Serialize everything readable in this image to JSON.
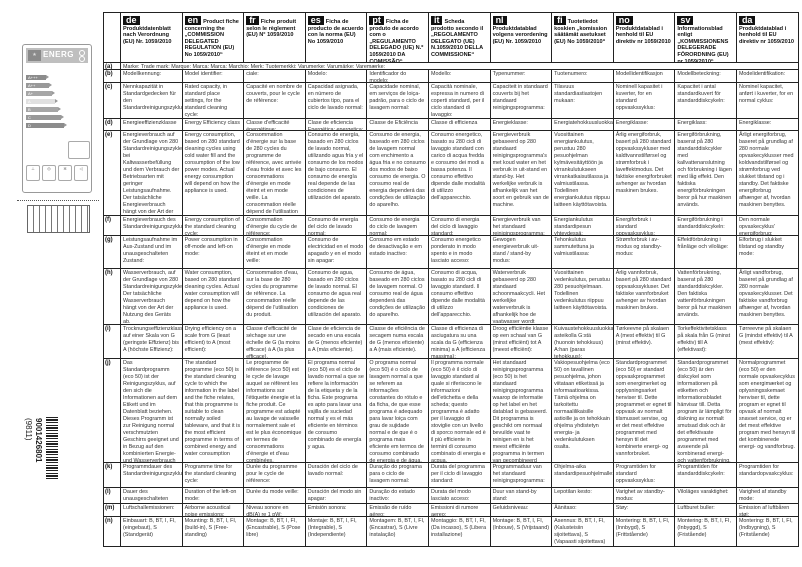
{
  "energy_label": {
    "brand_text": "ENERG",
    "classes": [
      "A+++",
      "A++",
      "A+",
      "A",
      "B",
      "C",
      "D"
    ],
    "icon_names": [
      "water-tap-icon",
      "dishes-icon",
      "drying-icon",
      "speaker-icon"
    ]
  },
  "barcode": {
    "number": "9001426801",
    "code": "(9811)"
  },
  "row_labels": [
    "(a)",
    "(b)",
    "(c)",
    "(d)",
    "(e)",
    "(f)",
    "(g)",
    "(h)",
    "(i)",
    "(j)",
    "(k)",
    "(l)",
    "(m)",
    "(n)"
  ],
  "row_a_text": "Marke: Trade mark: Marque: Marca: Marca: Marchio: Merk: Tuotemerkki: Varumerke: Varumärke: Varemærke:",
  "languages": [
    {
      "code": "de",
      "title": "Produktdatenblatt nach Verordnung (EU) Nr. 1059/2010",
      "b": "Modellkennung:",
      "c": "Nennkapazität in Standardgedecken für den Standardreinigungszyklus:",
      "d": "Energieeffizienzklasse",
      "e": "Energieverbrauch auf der Grundlage von 280 Standardreinigungszyklen bei Kaltwasserbefüllung und dem Verbrauch der Betriebsarten mit geringer Leistungsaufnahme. Der tatsächliche Energieverbrauch hängt von der Art der Nutzung des Geräts ab.",
      "f": "Energieverbrauch des Standardreinigungszyklus:",
      "g": "Leistungsaufnahme im Aus-Zustand und im unausgeschalteten Zustand:",
      "h": "Wasserverbrauch, auf der Grundlage von 280 Standardreinigungszyklen. Der tatsächliche Wasserverbrauch hängt von der Art der Nutzung des Geräts ab.",
      "i": "Trocknungseffizienzklasse auf einer Skala von G (geringste Effizienz) bis A (höchste Effizienz):",
      "j": "Das Standardprogramm (eco 50) ist der Reinigungszyklus, auf den sich die Informationen auf dem Etikett und im Datenblatt beziehen. Dieses Programm ist zur Reinigung normal verschmutzten Geschirrs geeignet und in Bezug auf den kombinierten Energie- und Wasserverbrauch am effizientesten.",
      "k": "Programmdauer des Standardreinigungszyklus:",
      "l": "Dauer des unausgeschalteten Zustands:",
      "m": "Luftschallemissionen:",
      "n": "Einbauart: B, BT, I, FI, (eingebaut), S (Standgerät)"
    },
    {
      "code": "en",
      "title": "Product fiche concerning the „COMMISSION DELEGATED REGULATION (EU) No 1059/2010“",
      "b": "Model identifier:",
      "c": "Rated capacity, in standard place settings, for the standard cleaning cycle:",
      "d": "Energy Efficiency class",
      "e": "Energy consumption, based on 280 standard cleaning cycles using cold water fill and the consumption of the low power modes. Actual energy consumption will depend on how the appliance is used.",
      "f": "Energy consumption of the standard cleaning cycle:",
      "g": "Power consumption in off-mode and left-on mode:",
      "h": "Water consumption, based on 280 standard cleaning cycles. Actual water consumption will depend on how the appliance is used.",
      "i": "Drying efficiency on a scale from G (least efficient) to A (most efficient):",
      "j": "The standard programme (eco 50) is the standard cleaning cycle to which the information in the label and the fiche relates, that this programme is suitable to clean normally soiled tableware, and that it is the most efficient programme in terms of combined energy and water consumption",
      "k": "Programme time for the standard cleaning cycle:",
      "l": "Duration of the left-on mode:",
      "m": "Airborne acoustical noise emissions:",
      "n": "Mounting: B, BT, I, FI, (build-in), S (Free-standing)"
    },
    {
      "code": "fr",
      "title": "Fiche produit selon le règlement (EU) N° 1059/2010",
      "b": "ciale:",
      "c": "Capacité en nombre de couverts, pour le cycle de référence:",
      "d": "Classe d'efficacité énergétique: energética:",
      "e": "Consommation d'énergie sur la base de 280 cycles du programme de référence, avec arrivée d'eau froide et avec les consommations d'énergie en mode éteint et en mode veille. La consommation réelle dépend de l'utilisation du produit.",
      "f": "Consommation d'énergie du cycle de référence:",
      "g": "Consommation d'énergie en mode éteint et en mode veille:",
      "h": "Consommation d'eau, sur la base de 280 cycles du programme de référence. La consommation réelle dépend de l'utilisation du produit.",
      "i": "Classe d'efficacité de séchage sur une échelle de G (la moins efficace) à A (la plus efficace).",
      "j": "Le programme de référence (eco 50) est le cycle de lavage auquel se réfèrent les informations sur l'étiquette énergie et la fiche produit. Ce programme est adapté au lavage de vaisselle normalement sale et est le plus économique en termes de consommations d'énergie et d'eau combinées.",
      "k": "Durée du programme pour le cycle de référence:",
      "l": "Durée du mode veille:",
      "m": "Niveau sonore en dB(A) re 1 pW:",
      "n": "Montage: B, BT, I, FI, (Encastrable), S (Pose libre)"
    },
    {
      "code": "es",
      "title": "Ficha de producto de acuerdo con la norma (EU) No 1059/2010",
      "b": "Modelo:",
      "c": "Capacidad asignada, en número de cubiertos tipo, para el ciclo de lavado normal:",
      "d": "Clase de eficiencia Energética: energetica:",
      "e": "Consumo de energía, basado en 280 ciclos de lavado normal, utilizando agua fría y el consumo de los modos de bajo consumo. El consumo de energía real depende de las condiciones de utilización del aparato.",
      "f": "Consumo de energía del ciclo de lavado normal:",
      "g": "Consumo de electricidad en el modo apagado y en el modo sin apagar:",
      "h": "Consumo de agua, basado en 280 ciclos de lavado normal. El consumo de agua real depende de las condiciones de utilización del aparato.",
      "i": "Clase de eficiencia de secado en una escala de G (menos eficiente) a A (más eficiente).",
      "j": "El programa normal (eco 50) es el ciclo de lavado normal a que se refiere la información de la etiqueta y de la ficha. Este programa es apto para lavar una vajilla de suciedad normal y es el más eficiente en términos de consumo combinado de energía y agua.",
      "k": "Duración del ciclo de lavado normal:",
      "l": "Duración del modo sin apagar:",
      "m": "Emisión sonora:",
      "n": "Montaje: B, BT, I, FI, (Integrable), S (Independiente)"
    },
    {
      "code": "pt",
      "title": "Ficha de produto de acordo com o „REGULAMENTO DELEGADO (UE) N.º 1059/2010 DA COMISSÃO“",
      "b": "Identificador do modelo:",
      "c": "Capacidade nominal, em serviços de loiça-padrão, para o ciclo de lavagem normal:",
      "d": "Classe de Eficiência",
      "e": "Consumo de energia, baseado em 280 ciclos de lavagem normal com enchimento a água fria e no consumo dos modos de baixo consumo de energia. O consumo real de energia dependerá das condições de utilização do aparelho.",
      "f": "Consumo de energia do ciclo de lavagem normal:",
      "g": "Consumo em estado de desactivação e em estado inactivo:",
      "h": "Consumo de água, baseado em 280 ciclos de lavagem normal. O consumo real de água dependerá das condições de utilização do aparelho.",
      "i": "Classe de eficiência de secagem numa escala de G (menos eficiente) a A (mais eficiente).",
      "j": "O programa normal (eco 50) é o ciclo de lavagem normal a que se referem as informações constantes do rótulo e da ficha, de que esse programa é adequado para lavar loiça com grau de sujidade normal e de que é o programa mais eficiente em termos de consumo combinado de energia e de água.",
      "k": "Duração do programa para o ciclo de lavagem normal:",
      "l": "Duração do estado inactivo:",
      "m": "Emissão de ruído aéreo:",
      "n": "Montagem: B, BT, I, FI, (Encastrar), S (Livre instalação)"
    },
    {
      "code": "it",
      "title": "Scheda prodotto secondo il „REGOLAMENTO DELEGATO (UE) N.1059/2010 DELLA COMMISSIONE“",
      "b": "Modello:",
      "c": "Capacità nominale, espressa in numero di coperti standard, per il ciclo standard di lavaggio:",
      "d": "Classe di efficienza",
      "e": "Consumo energetico, basato su 280 cicli di lavaggio standard con carico di acqua fredda e consumo dei modi a bassa potenza. Il consumo effettivo dipende dalle modalità di utilizzo dell'apparecchio.",
      "f": "Consumo di energia del ciclo di lavaggio standard:",
      "g": "Consumo energetico ponderato in modo spento e in modo lasciato acceso:",
      "h": "Consumo di acqua, basato su 280 cicli di lavaggio standard. Il consumo effettivo dipende dalle modalità di utilizzo dell'apparecchio.",
      "i": "Classe di efficienza di asciugatura su una scala da G (efficienza minima) a A (efficienza massima):",
      "j": "Il programma normale (eco 50) è il ciclo di lavaggio standard al quale si riferiscono le informazioni dell'etichetta e della scheda; questo programma è adatto per il lavaggio di stoviglie con un livello di sporco normale ed è il più efficiente in termini di consumo combinato di energia e acqua.",
      "k": "Durata del programma per il ciclo di lavaggio standard:",
      "l": "Durata del modo lasciato acceso:",
      "m": "Emissioni di rumore aereo:",
      "n": "Montaggio: B, BT, I, FI, (Da incasso), S (Libera installazione)"
    },
    {
      "code": "nl",
      "title": "Produktdatablad volgens verordening (EU) Nr. 1059/2010",
      "b": "Typenummer:",
      "c": "Capaciteit in standaard couverts bij het standaard reinigingsprogramma:",
      "d": "Energieklasse:",
      "e": "Energieverbruik gebaseerd op 280 standaard reinigingsprogramma's met koud water en het verbruik in uit-stand en stand-by. Het werkelijke verbruik is afhankelijk van het soort en gebruik van de machine.",
      "f": "Energieverbruik van het standaard reinigingsprogramma:",
      "g": "Gewogen energieverbruik uit-stand / stand-by modus:",
      "h": "Waterverbruik gebaseerd op 280 standaard schoonmaakcycli. Het werkelijke waterverbruik is afhankelijk hoe de vaatwasser wordt gebruikt.",
      "i": "Droog efficiëntie klasse op een schaal van G (minst efficiënt) tot A (meest efficiënt):",
      "j": "Het standaard reinigingsprogramma (eco 50) is het standaard reinigingsprogramma waarop de informatie op het label en het datablad is gebaseerd. Dit programma is geschikt om normaal bevuilde vaat te reinigen en is het meest efficiënte programma in termen van gecombineerd energie- en waterverbruik.",
      "k": "Programmaduur van het standaard reinigingsprogramma:",
      "l": "Duur van stand-by stand:",
      "m": "Geluidsniveau:",
      "n": "Montage: B, BT, I, FI, (Inbouw), S (Vrijstaand)"
    },
    {
      "code": "fi",
      "title": "Tuotetiedot koskien „komission säätämät asetukset (EU) No 1059/2010“",
      "b": "Tuotenumero:",
      "c": "Tilavuus standardiastiastojen mukaan:",
      "d": "Energiatehokkuusluokka:",
      "e": "Vuosittainen energiankulutus, perustuu 280 pesuohjelman kylmävesitäyttöön ja virrankulutukseen virrankatkaisutilassa ja valmiustilassa. Todellinen energiankulutus riippuu laitteen käyttötavoista.",
      "f": "Energiankulutus standardipesun yhteydessä:",
      "g": "Tehonkulutus sammutettuna ja valmiustilassa:",
      "h": "Vuosittainen vedenkulutus, perustuu 280 pesuohjelmaan. Todellinen vedenkulutus riippuu laitteen käyttötavoista.",
      "i": "Kuivaustehokkuusluokka asteikolla G:stä (huonoin tehokkuus) A:han (paras tehokkuus):",
      "j": "Vakiopesuohjelma (eco 50) on tavallinen pesuohjelma, johon viitataan etiketissä ja informaatioarkissa. Tämä ohjelma on tarkoitettu normaalilikaisille astioille ja on tehokkain ohjelma yhdistetyn energia- ja vedenkulutuksen osalta.",
      "k": "Ohjelma-aika standardipesuohjelmalle:",
      "l": "Lepotilan kesto:",
      "m": "Äänitaso:",
      "n": "Asennus: B, BT, I, FI, (Kalusteisiin sijoitettava), S (Vapaasti sijoitettava)"
    },
    {
      "code": "no",
      "title": "Produktdatablad i henhold til EU direktiv nr 1059/2010",
      "b": "Modellidentifikasjon",
      "c": "Nominell kapasitet i kuverter, for en standard oppvaskssyklus:",
      "d": "Energiklasse:",
      "e": "Årlig energiforbruk, basert på 280 standard oppvaskssykluser med kaldtvannstilførsel og strømforbruk i laveffektmodus. Det faktiske energiforbruket avhenger av hvordan maskinen brukes.",
      "f": "Energiforbruk i standard oppvaskssyklus:",
      "g": "Strømforbruk i av-modus og standby-modus:",
      "h": "Årlig vannforbruk, basert på 280 standard oppvaskssykluser. Det faktiske vannforbruket avhenger av hvordan maskinen brukes.",
      "i": "Tørkeevne på skalaen A (mest effektiv) til G (minst effektiv).",
      "j": "Standardprogrammet (eco 50) er standard oppvaskprogrammet som energimerket og opplysningsarket henviser til. Dette programmet er egnet til oppvask av normalt tilsmusset servise, og er det mest effektive programmet med hensyn til det kombinerte energi- og vannforbruket.",
      "k": "Programtiden for standard oppvaskssyklus:",
      "l": "Varighet av standby-modus:",
      "m": "Støy:",
      "n": "Montering: B, BT, I, FI, (Innbygd), S (Frittstående)"
    },
    {
      "code": "sv",
      "title": "Informationsblad enligt „KOMMISSIONENS DELEGERADE FÖRORDNING (EU) nr 1059/2010“",
      "b": "Modellbeteckning:",
      "c": "Kapacitet i antal standardkuvert för standarddiskcykeln:",
      "d": "Energiklass:",
      "e": "Energiförbrukning, baserat på 280 standarddiskcykler med kallvattenanslutning och förbrukning i lägen med låg effekt. Den faktiska energiförbrukningen beror på hur maskinen används.",
      "f": "Energiförbrukning i standarddiskcykeln:",
      "g": "Effektförbrukning i frånläge och viloläge:",
      "h": "Vattenförbrukning, baserat på 280 standarddiskcykler. Den faktiska vattenförbrukningen beror på hur maskinen används.",
      "i": "Torkeffektivitetsklass på skala från G (minst effektiv) till A (effektivast):",
      "j": "Standardprogrammet (eco 50) är den diskcykel som informationen på etiketten och informationsbladet hänvisar till. Detta program är lämpligt för diskning av normalt smutsad disk och är det effektivaste programmet med avseende på kombinerad energi- och vattenförbrukning.",
      "k": "Programtiden för standarddiskcykeln:",
      "l": "Viloläges varaktighet:",
      "m": "Luftburet buller:",
      "n": "Montering: B, BT, I, FI, (Inbyggd), S (Fristående)"
    },
    {
      "code": "da",
      "title": "Produktdatablad i henhold til EU direktiv nr 1059/2010",
      "b": "Modelidentifikation:",
      "c": "Nominel kapacitet, anført i kuverter, for en normal cyklus:",
      "d": "Energiklasse:",
      "e": "Årligt energiforbrug, baseret på grundlag af 280 normale opvaskecyklusser med koldvandstilførsel og strømforbrug ved slukket tilstand og i standby. Det faktiske energiforbrug afhænger af, hvordan maskinen benyttes.",
      "f": "Den normale opvaskecyklus' energiforbrug:",
      "g": "Elforbrug i slukket tilstand og standby mode:",
      "h": "Årligt vandforbrug, baseret på grundlag af 280 normale opvaskecyklusser. Det faktiske vandforbrug afhænger af, hvordan maskinen benyttes.",
      "i": "Tørreevne på skalaen G (mindst effektiv) til A (mest effektiv):",
      "j": "Normalprogrammet (eco 50) er den normale opvaskecyklus som energimærket og oplysningsskemaet henviser til, dette program er egnet til opvask af normalt snavset service, og er det mest effektive program med hensyn til det kombinerede energi- og vandforbrug.",
      "k": "Programtiden for standardopvaskcyklus:",
      "l": "Varighed af standby mode:",
      "m": "Emission af luftbåren støj:",
      "n": "Montering: B, BT, I, FI, (Indbygning), S (Fritstående)"
    }
  ]
}
